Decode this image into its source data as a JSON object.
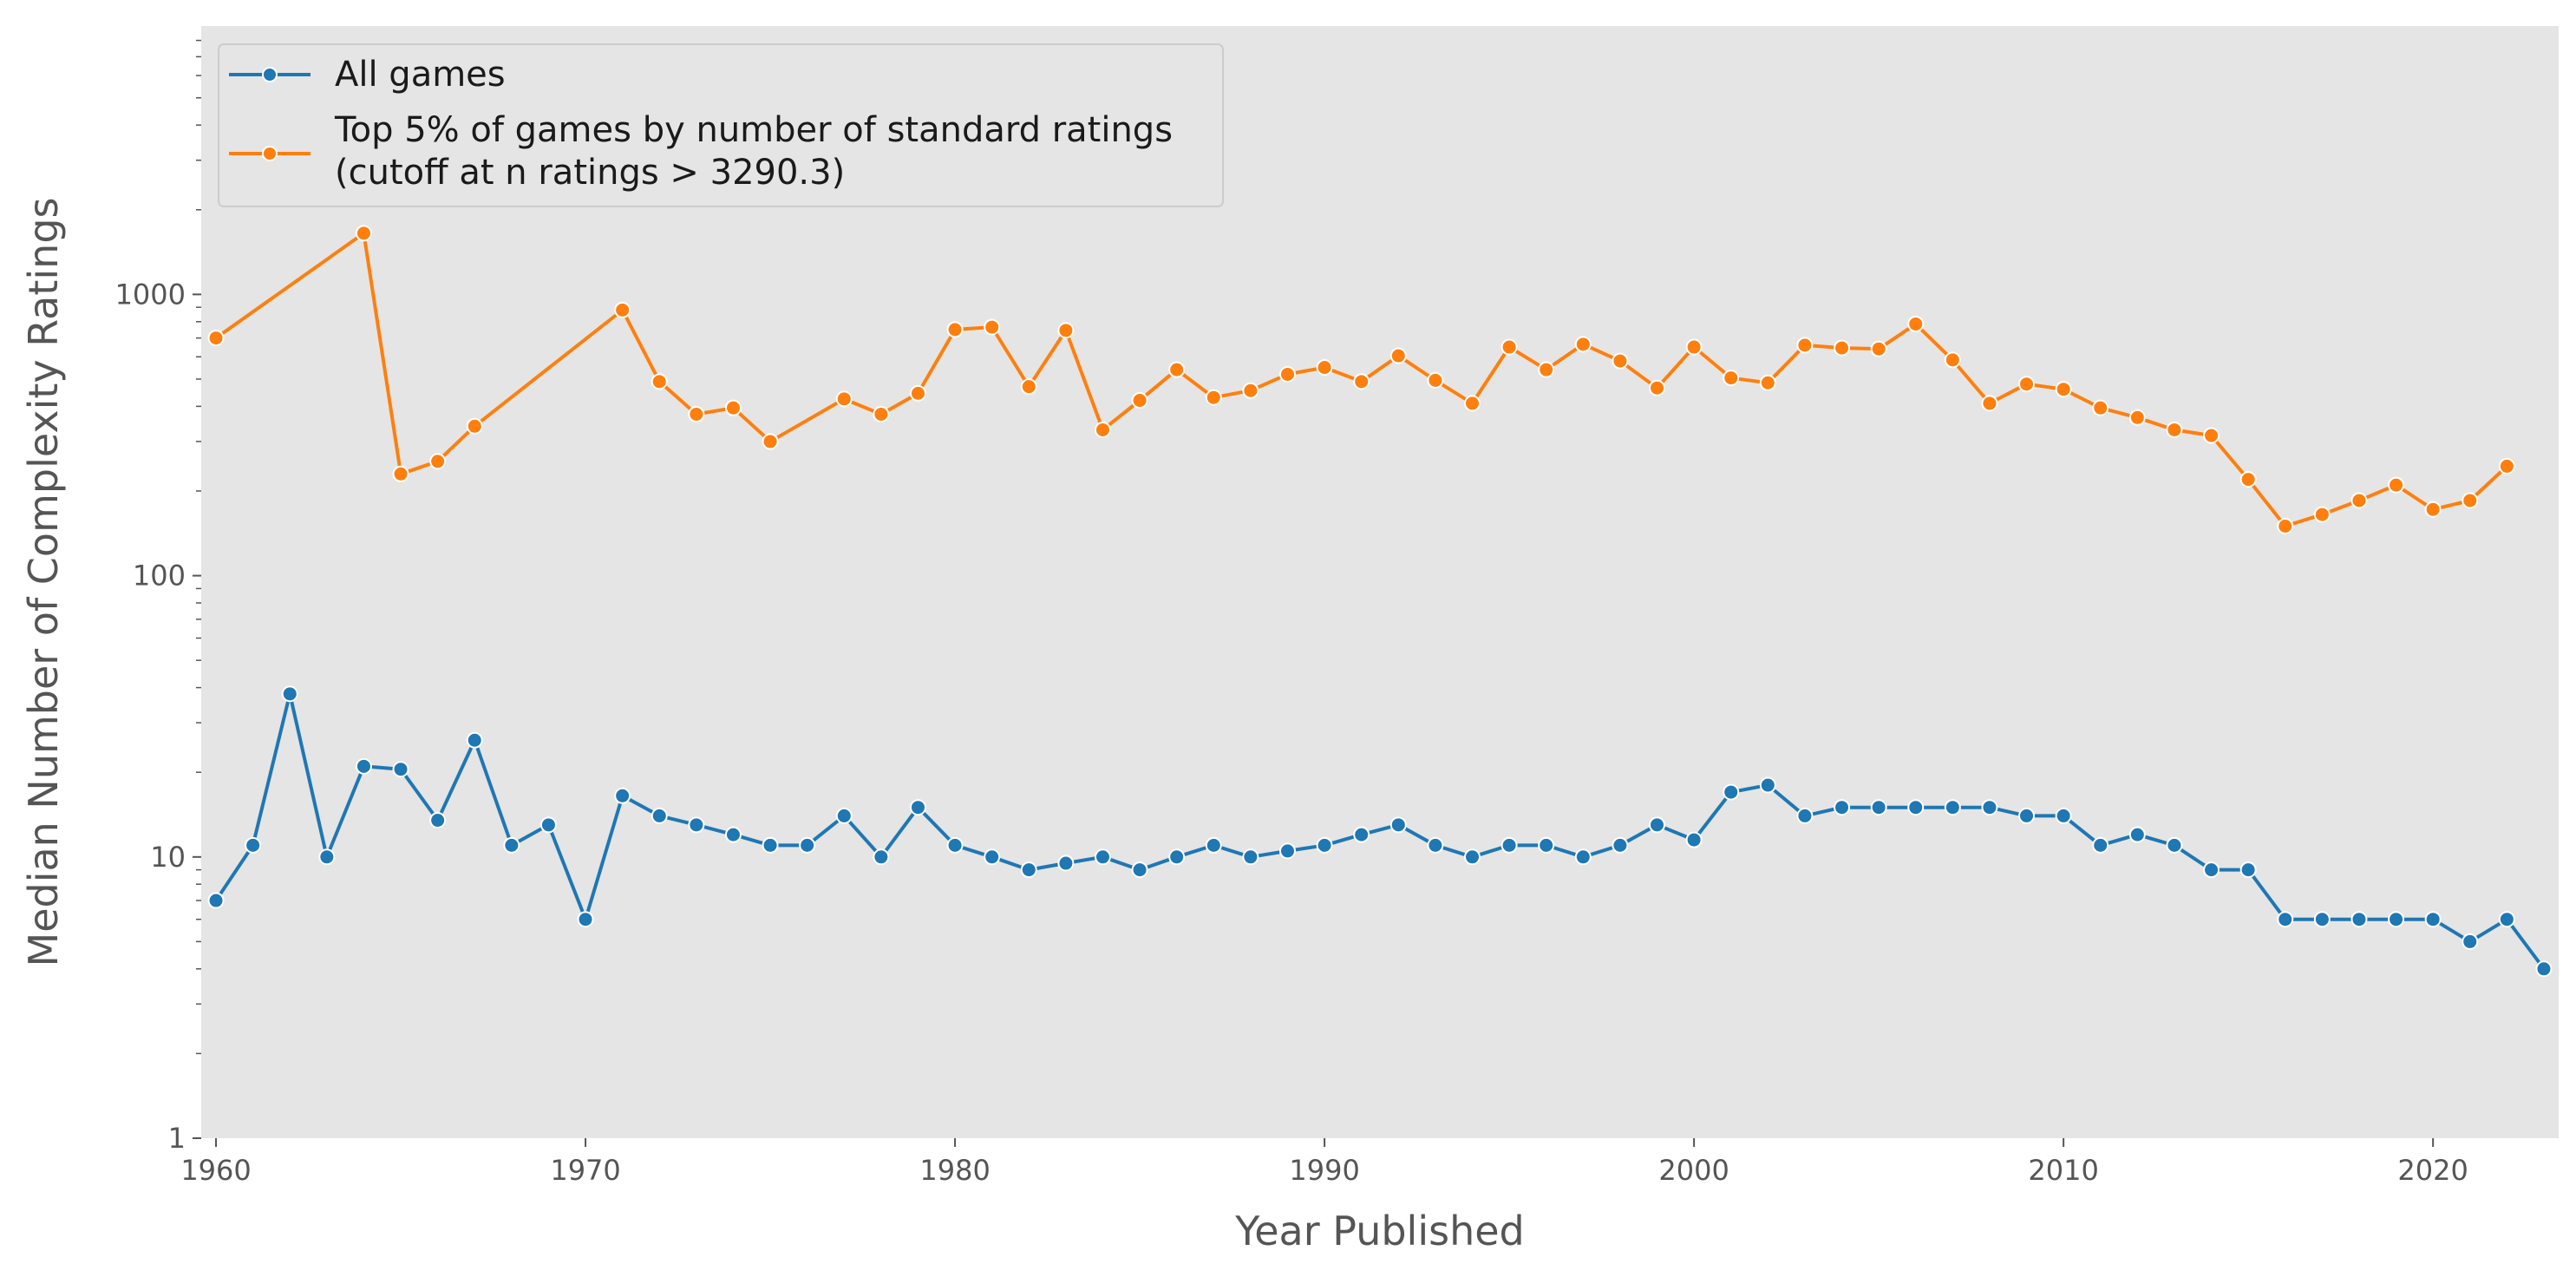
{
  "chart_data": {
    "type": "line",
    "xlabel": "Year Published",
    "ylabel": "Median Number of Complexity Ratings",
    "yscale": "log",
    "xlim": [
      1959.6,
      2023.4
    ],
    "ylim": [
      1,
      9000
    ],
    "x_ticks": [
      1960,
      1970,
      1980,
      1990,
      2000,
      2010,
      2020
    ],
    "y_ticks": [
      1,
      10,
      100,
      1000
    ],
    "grid": false,
    "legend_position": "top-left",
    "series": [
      {
        "name": "All games",
        "color": "#1f77b4",
        "x": [
          1960,
          1961,
          1962,
          1963,
          1964,
          1965,
          1966,
          1967,
          1968,
          1969,
          1970,
          1971,
          1972,
          1973,
          1974,
          1975,
          1976,
          1977,
          1978,
          1979,
          1980,
          1981,
          1982,
          1983,
          1984,
          1985,
          1986,
          1987,
          1988,
          1989,
          1990,
          1991,
          1992,
          1993,
          1994,
          1995,
          1996,
          1997,
          1998,
          1999,
          2000,
          2001,
          2002,
          2003,
          2004,
          2005,
          2006,
          2007,
          2008,
          2009,
          2010,
          2011,
          2012,
          2013,
          2014,
          2015,
          2016,
          2017,
          2018,
          2019,
          2020,
          2021,
          2022,
          2023
        ],
        "y": [
          7,
          11,
          38,
          10,
          21,
          20.5,
          13.5,
          26,
          11,
          13,
          6,
          16.5,
          14,
          13,
          12,
          11,
          11,
          14,
          10,
          15,
          11,
          10,
          9,
          9.5,
          10,
          9,
          10,
          11,
          10,
          10.5,
          11,
          12,
          13,
          11,
          10,
          11,
          11,
          10,
          11,
          13,
          11.5,
          17,
          18,
          14,
          15,
          15,
          15,
          15,
          15,
          14,
          14,
          11,
          12,
          11,
          9,
          9,
          6,
          6,
          6,
          6,
          6,
          5,
          6,
          4
        ]
      },
      {
        "name": "Top 5% of games by number of standard ratings\n(cutoff at n ratings > 3290.3)",
        "color": "#ff7f0e",
        "x": [
          1960,
          1964,
          1965,
          1966,
          1967,
          1971,
          1972,
          1973,
          1974,
          1975,
          1977,
          1978,
          1979,
          1980,
          1981,
          1982,
          1983,
          1984,
          1985,
          1986,
          1987,
          1988,
          1989,
          1990,
          1991,
          1992,
          1993,
          1994,
          1995,
          1996,
          1997,
          1998,
          1999,
          2000,
          2001,
          2002,
          2003,
          2004,
          2005,
          2006,
          2007,
          2008,
          2009,
          2010,
          2011,
          2012,
          2013,
          2014,
          2015,
          2016,
          2017,
          2018,
          2019,
          2020,
          2021,
          2022
        ],
        "y": [
          700,
          1650,
          230,
          255,
          340,
          880,
          490,
          375,
          395,
          300,
          425,
          375,
          445,
          750,
          765,
          470,
          745,
          330,
          420,
          540,
          430,
          455,
          520,
          550,
          490,
          605,
          495,
          410,
          650,
          540,
          665,
          580,
          465,
          650,
          505,
          485,
          660,
          645,
          640,
          785,
          585,
          410,
          480,
          460,
          395,
          365,
          330,
          315,
          220,
          150,
          165,
          185,
          210,
          172,
          185,
          245
        ]
      }
    ]
  },
  "legend": {
    "series1_label": "All games",
    "series2_line1": "Top 5% of games by number of standard ratings",
    "series2_line2": "(cutoff at n ratings > 3290.3)"
  },
  "axes": {
    "xlabel": "Year Published",
    "ylabel": "Median Number of Complexity Ratings",
    "x_tick_labels": [
      "1960",
      "1970",
      "1980",
      "1990",
      "2000",
      "2010",
      "2020"
    ],
    "y_tick_labels": [
      "1",
      "10",
      "100",
      "1000"
    ]
  },
  "colors": {
    "plot_background": "#e5e5e5",
    "all_games": "#1f77b4",
    "top_games": "#ff7f0e"
  }
}
